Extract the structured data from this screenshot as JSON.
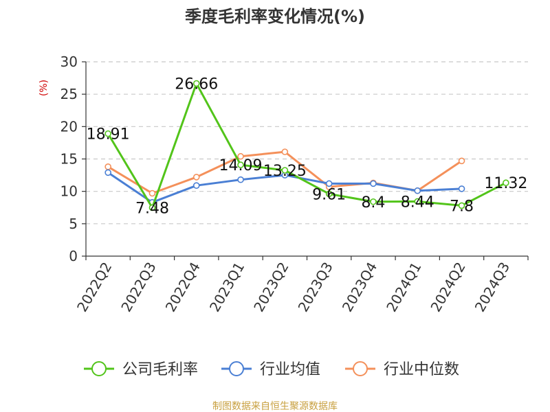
{
  "chart_data": {
    "type": "line",
    "title": "季度毛利率变化情况(%)",
    "ylabel": "(%)",
    "ylim": [
      0,
      30
    ],
    "yticks": [
      0,
      5,
      10,
      15,
      20,
      25,
      30
    ],
    "grid": true,
    "legend_position": "bottom",
    "categories": [
      "2022Q2",
      "2022Q3",
      "2022Q4",
      "2023Q1",
      "2023Q2",
      "2023Q3",
      "2023Q4",
      "2024Q1",
      "2024Q2",
      "2024Q3"
    ],
    "series": [
      {
        "name": "公司毛利率",
        "color": "#52c41a",
        "values": [
          18.91,
          7.48,
          26.66,
          14.09,
          13.25,
          9.61,
          8.4,
          8.44,
          7.8,
          11.32
        ],
        "labels": [
          "18.91",
          "7.48",
          "26.66",
          "14.09",
          "13.25",
          "9.61",
          "8.4",
          "8.44",
          "7.8",
          "11.32"
        ]
      },
      {
        "name": "行业均值",
        "color": "#4a7fd4",
        "values": [
          12.9,
          8.3,
          10.9,
          11.8,
          12.5,
          11.2,
          11.2,
          10.1,
          10.4,
          null
        ]
      },
      {
        "name": "行业中位数",
        "color": "#f4905a",
        "values": [
          13.8,
          9.7,
          12.2,
          15.4,
          16.1,
          10.7,
          11.3,
          10.1,
          14.7,
          null
        ]
      }
    ],
    "source": "制图数据来自恒生聚源数据库"
  }
}
